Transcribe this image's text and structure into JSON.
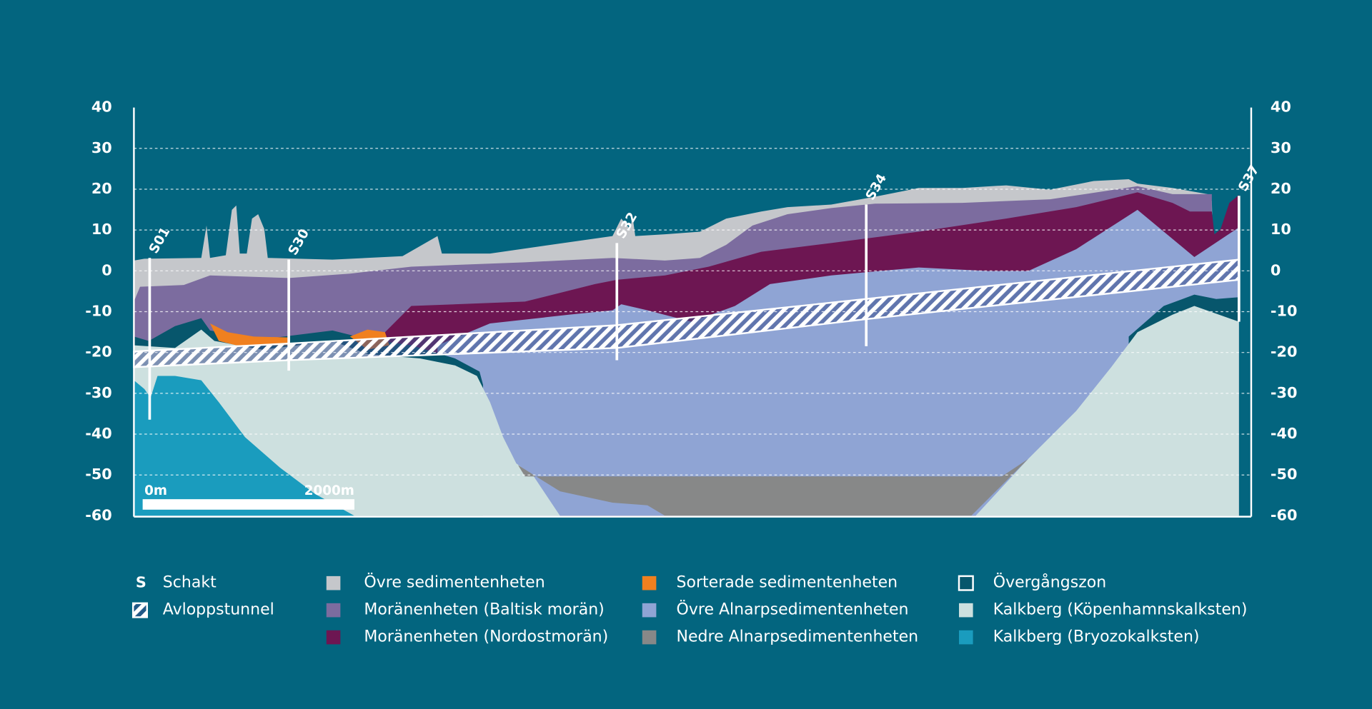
{
  "y_axis": {
    "ticks": [
      40,
      30,
      20,
      10,
      0,
      -10,
      -20,
      -30,
      -40,
      -50,
      -60
    ]
  },
  "shafts": [
    "S01",
    "S30",
    "S32",
    "S34",
    "S37"
  ],
  "scale_bar": {
    "start": "0m",
    "end": "2000m"
  },
  "legend": [
    {
      "symbol": "S",
      "label": "Schakt"
    },
    {
      "label": "Avloppstunnel"
    },
    {
      "label": "Övre sedimentenheten",
      "color": "#c5c7cb"
    },
    {
      "label": "Moränenheten (Baltisk morän)",
      "color": "#7c6c9f"
    },
    {
      "label": "Moränenheten (Nordostmorän)",
      "color": "#6d1652"
    },
    {
      "label": "Sorterade sedimentenheten",
      "color": "#f0801f"
    },
    {
      "label": "Övre Alnarpsedimentenheten",
      "color": "#8fa4d4"
    },
    {
      "label": "Nedre Alnarpsedimentenheten",
      "color": "#878888"
    },
    {
      "label": "Övergångszon",
      "color": "#07566c"
    },
    {
      "label": "Kalkberg (Köpenhamnskalksten)",
      "color": "#cde0df"
    },
    {
      "label": "Kalkberg (Bryozokalksten)",
      "color": "#1a9cbe"
    }
  ]
}
